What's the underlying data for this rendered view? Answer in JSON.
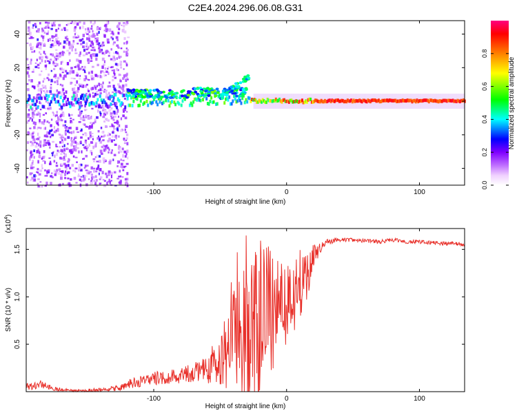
{
  "title": "C2E4.2024.296.06.08.G31",
  "chart_data": [
    {
      "type": "heatmap",
      "title": "C2E4.2024.296.06.08.G31",
      "xlabel": "Height of straight line (km)",
      "ylabel": "Frequency (Hz)",
      "xlim": [
        -196,
        134
      ],
      "ylim": [
        -50,
        48
      ],
      "xticks": [
        -100,
        0,
        100
      ],
      "xtick_labels": [
        "-100",
        "0",
        "100"
      ],
      "yticks": [
        -40,
        -20,
        0,
        20,
        40
      ],
      "ytick_labels": [
        "-40",
        "-20",
        "0",
        "20",
        "40"
      ],
      "colorbar": {
        "label": "Normalized spectral amplitude",
        "range": [
          0,
          1
        ],
        "ticks": [
          0.0,
          0.2,
          0.4,
          0.6,
          0.8
        ],
        "tick_labels": [
          "0.0",
          "0.2",
          "0.4",
          "0.6",
          "0.8"
        ],
        "colors": [
          "#ffffff",
          "#e8b8ff",
          "#8000ff",
          "#0000ff",
          "#00ffff",
          "#00ff00",
          "#ffff00",
          "#ff8000",
          "#ff0000",
          "#ff0080"
        ]
      },
      "features": [
        {
          "name": "scattered noise",
          "x_range": [
            -196,
            -120
          ],
          "freq_range": [
            -50,
            48
          ],
          "amplitude": 0.05
        },
        {
          "name": "main signal trace",
          "x_range": [
            -196,
            134
          ],
          "freq_center": 0,
          "amplitude_peak": 0.95
        },
        {
          "name": "frequency excursion",
          "x_range": [
            -50,
            -28
          ],
          "freq_range": [
            2,
            15
          ]
        }
      ]
    },
    {
      "type": "line",
      "xlabel": "Height of straight line (km)",
      "ylabel": "SNR (10 * v/v)",
      "yscale_label": "(x10",
      "yscale_exp": "4",
      "xlim": [
        -196,
        134
      ],
      "ylim": [
        0,
        1.72
      ],
      "xticks": [
        -100,
        0,
        100
      ],
      "xtick_labels": [
        "-100",
        "0",
        "100"
      ],
      "yticks": [
        0.5,
        1.0,
        1.5
      ],
      "ytick_labels": [
        "0.5",
        "1.0",
        "1.5"
      ],
      "color": "#e8302a",
      "x": [
        -196,
        -190,
        -185,
        -175,
        -160,
        -140,
        -125,
        -115,
        -105,
        -95,
        -80,
        -70,
        -60,
        -50,
        -45,
        -40,
        -35,
        -30,
        -25,
        -20,
        -15,
        -10,
        -5,
        0,
        5,
        10,
        15,
        20,
        25,
        30,
        40,
        50,
        60,
        70,
        80,
        90,
        100,
        110,
        120,
        125,
        134
      ],
      "values": [
        0.05,
        0.06,
        0.08,
        0.03,
        0.01,
        0.02,
        0.04,
        0.1,
        0.12,
        0.15,
        0.17,
        0.2,
        0.25,
        0.4,
        0.55,
        0.8,
        0.95,
        0.85,
        0.75,
        0.9,
        0.95,
        1.0,
        1.05,
        1.1,
        1.15,
        1.2,
        1.3,
        1.42,
        1.52,
        1.58,
        1.6,
        1.6,
        1.59,
        1.58,
        1.6,
        1.58,
        1.58,
        1.57,
        1.56,
        1.56,
        1.55
      ],
      "spread": [
        0.04,
        0.04,
        0.04,
        0.02,
        0.01,
        0.02,
        0.03,
        0.06,
        0.06,
        0.08,
        0.08,
        0.1,
        0.12,
        0.25,
        0.35,
        0.55,
        0.7,
        0.8,
        0.7,
        0.7,
        0.65,
        0.5,
        0.45,
        0.4,
        0.35,
        0.3,
        0.25,
        0.15,
        0.06,
        0.03,
        0.02,
        0.02,
        0.02,
        0.02,
        0.02,
        0.02,
        0.02,
        0.02,
        0.02,
        0.02,
        0.02
      ]
    }
  ]
}
